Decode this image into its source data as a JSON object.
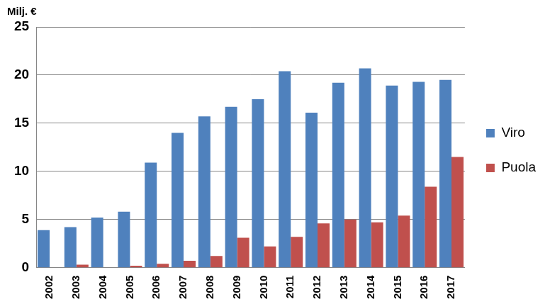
{
  "chart_data": {
    "type": "bar",
    "y_label": "Milj. €",
    "categories": [
      "2002",
      "2003",
      "2004",
      "2005",
      "2006",
      "2007",
      "2008",
      "2009",
      "2010",
      "2011",
      "2012",
      "2013",
      "2014",
      "2015",
      "2016",
      "2017"
    ],
    "series": [
      {
        "name": "Viro",
        "color": "#4f81bd",
        "values": [
          3.9,
          4.2,
          5.2,
          5.8,
          10.9,
          14.0,
          15.7,
          16.7,
          17.5,
          20.4,
          16.1,
          19.2,
          20.7,
          18.9,
          19.3,
          19.5
        ]
      },
      {
        "name": "Puola",
        "color": "#c0504d",
        "values": [
          0,
          0.3,
          0,
          0.2,
          0.4,
          0.7,
          1.2,
          3.1,
          2.2,
          3.2,
          4.6,
          5.0,
          4.7,
          5.4,
          8.4,
          11.5
        ]
      }
    ],
    "ylim": [
      0,
      25
    ],
    "yticks": [
      0,
      5,
      10,
      15,
      20,
      25
    ],
    "grid": true,
    "legend": "right"
  }
}
